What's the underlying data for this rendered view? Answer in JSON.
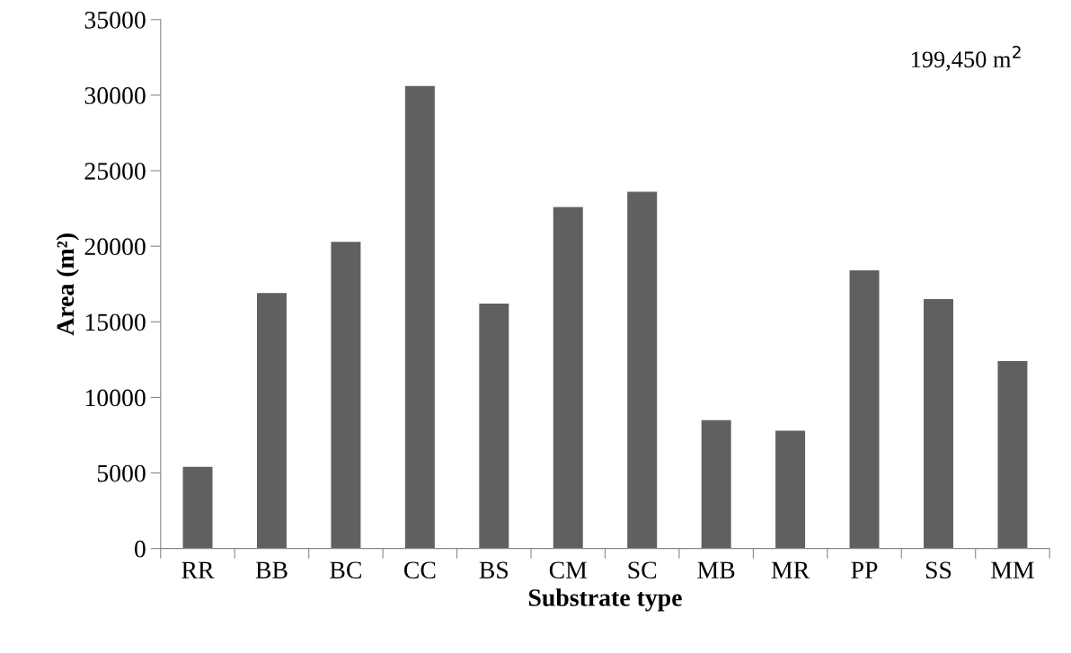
{
  "chart_data": {
    "type": "bar",
    "xlabel": "Substrate type",
    "ylabel": "Area (m²)",
    "categories": [
      "RR",
      "BB",
      "BC",
      "CC",
      "BS",
      "CM",
      "SC",
      "MB",
      "MR",
      "PP",
      "SS",
      "MM"
    ],
    "values": [
      5400,
      16900,
      20300,
      30600,
      16200,
      22600,
      23600,
      8500,
      7800,
      18400,
      16500,
      12400
    ],
    "color": "#606060",
    "ylim": [
      0,
      35000
    ],
    "yticks": [
      0,
      5000,
      10000,
      15000,
      20000,
      25000,
      30000,
      35000
    ],
    "grid": false,
    "legend": false,
    "annotations": [
      "199,450 m$^{2}$"
    ]
  }
}
